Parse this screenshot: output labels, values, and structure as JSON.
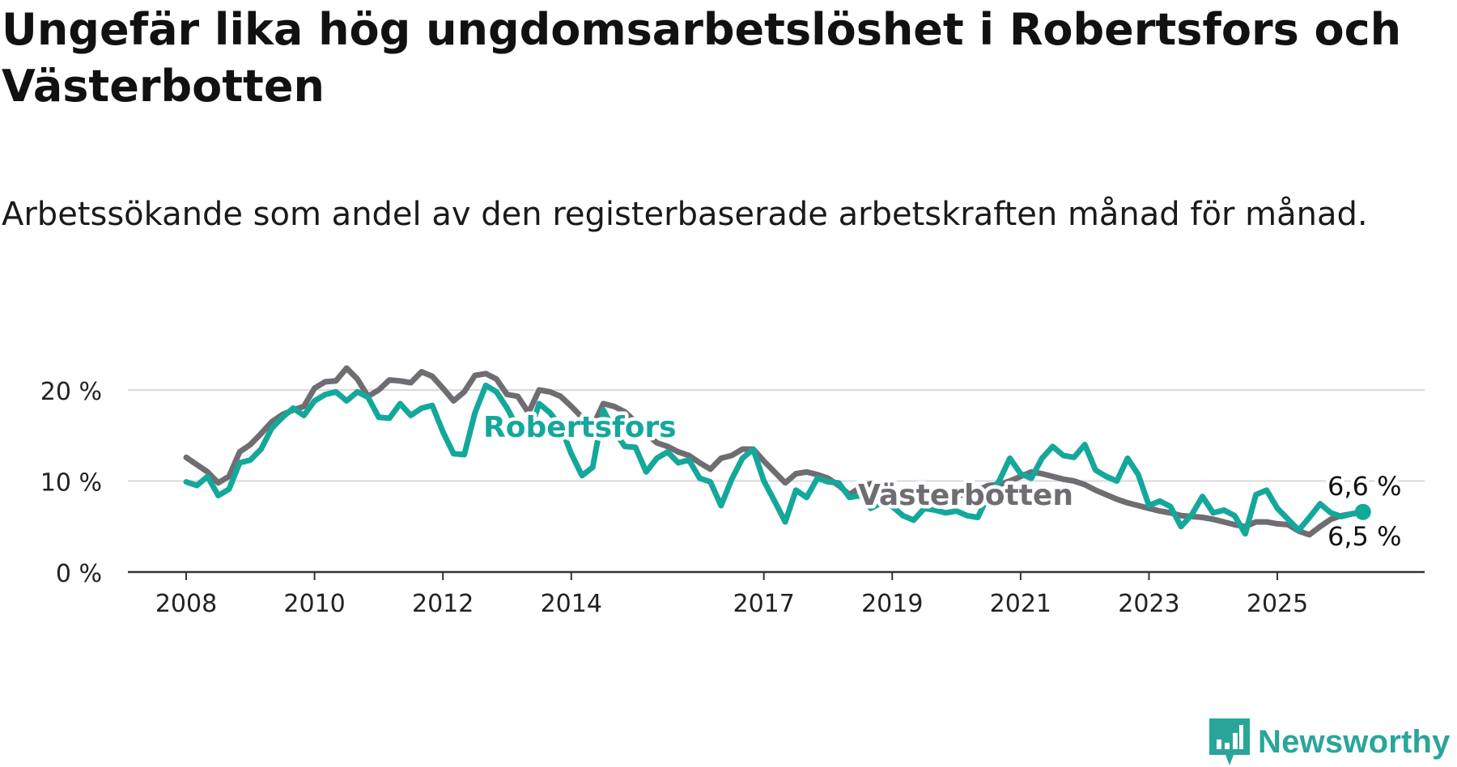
{
  "header": {
    "title": "Ungefär lika hög ungdomsarbetslöshet i Robertsfors och Västerbotten",
    "subtitle": "Arbetssökande som andel av den registerbaserade arbetskraften månad för månad."
  },
  "brand": {
    "name": "Newsworthy",
    "color": "#2aa59a",
    "logo_icon": "bar-chart-badge-icon"
  },
  "colors": {
    "robertsfors": "#14a89b",
    "vasterbotten": "#6f6d72",
    "grid": "#d9d9d9",
    "axis": "#333333"
  },
  "chart_data": {
    "type": "line",
    "title": "Ungefär lika hög ungdomsarbetslöshet i Robertsfors och Västerbotten",
    "subtitle": "Arbetssökande som andel av den registerbaserade arbetskraften månad för månad.",
    "xlabel": "",
    "ylabel": "",
    "x_ticks": [
      "2008",
      "2010",
      "2012",
      "2014",
      "2017",
      "2019",
      "2021",
      "2023",
      "2025"
    ],
    "y_ticks": [
      0,
      10,
      20
    ],
    "y_tick_labels": [
      "0 %",
      "10 %",
      "20 %"
    ],
    "ylim": [
      0,
      22.5
    ],
    "grid": "horizontal",
    "legend": "inline labels",
    "series": [
      {
        "name": "Robertsfors",
        "color": "#14a89b",
        "end_label": "6,6 %",
        "points": [
          [
            "2008-01",
            9.9
          ],
          [
            "2008-03",
            9.5
          ],
          [
            "2008-05",
            10.5
          ],
          [
            "2008-07",
            8.4
          ],
          [
            "2008-09",
            9.1
          ],
          [
            "2008-11",
            12.0
          ],
          [
            "2009-01",
            12.3
          ],
          [
            "2009-03",
            13.5
          ],
          [
            "2009-05",
            15.8
          ],
          [
            "2009-07",
            17.0
          ],
          [
            "2009-09",
            18.0
          ],
          [
            "2009-11",
            17.2
          ],
          [
            "2010-01",
            18.8
          ],
          [
            "2010-03",
            19.5
          ],
          [
            "2010-05",
            19.8
          ],
          [
            "2010-07",
            18.8
          ],
          [
            "2010-09",
            19.8
          ],
          [
            "2010-11",
            19.2
          ],
          [
            "2011-01",
            17.0
          ],
          [
            "2011-03",
            16.9
          ],
          [
            "2011-05",
            18.5
          ],
          [
            "2011-07",
            17.2
          ],
          [
            "2011-09",
            18.0
          ],
          [
            "2011-11",
            18.3
          ],
          [
            "2012-01",
            15.4
          ],
          [
            "2012-03",
            13.0
          ],
          [
            "2012-05",
            12.9
          ],
          [
            "2012-07",
            17.5
          ],
          [
            "2012-09",
            20.5
          ],
          [
            "2012-11",
            19.8
          ],
          [
            "2013-01",
            18.0
          ],
          [
            "2013-03",
            15.8
          ],
          [
            "2013-05",
            15.0
          ],
          [
            "2013-07",
            18.5
          ],
          [
            "2013-09",
            17.5
          ],
          [
            "2013-11",
            16.0
          ],
          [
            "2014-01",
            13.0
          ],
          [
            "2014-03",
            10.6
          ],
          [
            "2014-05",
            11.5
          ],
          [
            "2014-07",
            17.8
          ],
          [
            "2014-09",
            15.5
          ],
          [
            "2014-11",
            13.8
          ],
          [
            "2015-01",
            13.7
          ],
          [
            "2015-03",
            11.0
          ],
          [
            "2015-05",
            12.5
          ],
          [
            "2015-07",
            13.2
          ],
          [
            "2015-09",
            12.0
          ],
          [
            "2015-11",
            12.3
          ],
          [
            "2016-01",
            10.3
          ],
          [
            "2016-03",
            9.9
          ],
          [
            "2016-05",
            7.3
          ],
          [
            "2016-07",
            10.2
          ],
          [
            "2016-09",
            12.5
          ],
          [
            "2016-11",
            13.5
          ],
          [
            "2017-01",
            10.0
          ],
          [
            "2017-03",
            7.8
          ],
          [
            "2017-05",
            5.5
          ],
          [
            "2017-07",
            9.0
          ],
          [
            "2017-09",
            8.2
          ],
          [
            "2017-11",
            10.3
          ],
          [
            "2018-01",
            9.9
          ],
          [
            "2018-03",
            9.8
          ],
          [
            "2018-05",
            8.2
          ],
          [
            "2018-07",
            8.4
          ],
          [
            "2018-09",
            7.0
          ],
          [
            "2018-11",
            7.6
          ],
          [
            "2019-01",
            7.2
          ],
          [
            "2019-03",
            6.2
          ],
          [
            "2019-05",
            5.7
          ],
          [
            "2019-07",
            7.0
          ],
          [
            "2019-09",
            6.8
          ],
          [
            "2019-11",
            6.5
          ],
          [
            "2020-01",
            6.7
          ],
          [
            "2020-03",
            6.2
          ],
          [
            "2020-05",
            6.0
          ],
          [
            "2020-07",
            8.5
          ],
          [
            "2020-09",
            10.0
          ],
          [
            "2020-11",
            12.5
          ],
          [
            "2021-01",
            10.8
          ],
          [
            "2021-03",
            10.3
          ],
          [
            "2021-05",
            12.5
          ],
          [
            "2021-07",
            13.8
          ],
          [
            "2021-09",
            12.8
          ],
          [
            "2021-11",
            12.6
          ],
          [
            "2022-01",
            14.0
          ],
          [
            "2022-03",
            11.2
          ],
          [
            "2022-05",
            10.5
          ],
          [
            "2022-07",
            10.0
          ],
          [
            "2022-09",
            12.5
          ],
          [
            "2022-11",
            10.7
          ],
          [
            "2023-01",
            7.3
          ],
          [
            "2023-03",
            7.8
          ],
          [
            "2023-05",
            7.2
          ],
          [
            "2023-07",
            5.0
          ],
          [
            "2023-09",
            6.3
          ],
          [
            "2023-11",
            8.3
          ],
          [
            "2024-01",
            6.5
          ],
          [
            "2024-03",
            6.8
          ],
          [
            "2024-05",
            6.2
          ],
          [
            "2024-07",
            4.2
          ],
          [
            "2024-09",
            8.5
          ],
          [
            "2024-11",
            9.0
          ],
          [
            "2025-01",
            7.0
          ],
          [
            "2025-03",
            5.8
          ],
          [
            "2025-05",
            4.6
          ],
          [
            "2025-07",
            6.0
          ],
          [
            "2025-09",
            7.5
          ],
          [
            "2025-11",
            6.5
          ],
          [
            "2026-01",
            6.1
          ],
          [
            "2026-03",
            6.4
          ],
          [
            "2026-05",
            6.6
          ]
        ]
      },
      {
        "name": "Västerbotten",
        "color": "#6f6d72",
        "end_label": "6,5 %",
        "points": [
          [
            "2008-01",
            12.6
          ],
          [
            "2008-03",
            11.8
          ],
          [
            "2008-05",
            11.0
          ],
          [
            "2008-07",
            9.8
          ],
          [
            "2008-09",
            10.5
          ],
          [
            "2008-11",
            13.2
          ],
          [
            "2009-01",
            14.0
          ],
          [
            "2009-03",
            15.2
          ],
          [
            "2009-05",
            16.5
          ],
          [
            "2009-07",
            17.3
          ],
          [
            "2009-09",
            17.8
          ],
          [
            "2009-11",
            18.2
          ],
          [
            "2010-01",
            20.2
          ],
          [
            "2010-03",
            20.9
          ],
          [
            "2010-05",
            21.0
          ],
          [
            "2010-07",
            22.4
          ],
          [
            "2010-09",
            21.2
          ],
          [
            "2010-11",
            19.3
          ],
          [
            "2011-01",
            20.0
          ],
          [
            "2011-03",
            21.1
          ],
          [
            "2011-05",
            21.0
          ],
          [
            "2011-07",
            20.8
          ],
          [
            "2011-09",
            22.0
          ],
          [
            "2011-11",
            21.5
          ],
          [
            "2012-01",
            20.2
          ],
          [
            "2012-03",
            18.8
          ],
          [
            "2012-05",
            19.8
          ],
          [
            "2012-07",
            21.6
          ],
          [
            "2012-09",
            21.8
          ],
          [
            "2012-11",
            21.2
          ],
          [
            "2013-01",
            19.5
          ],
          [
            "2013-03",
            19.3
          ],
          [
            "2013-05",
            17.5
          ],
          [
            "2013-07",
            20.0
          ],
          [
            "2013-09",
            19.8
          ],
          [
            "2013-11",
            19.3
          ],
          [
            "2014-01",
            18.2
          ],
          [
            "2014-03",
            17.0
          ],
          [
            "2014-05",
            16.0
          ],
          [
            "2014-07",
            18.5
          ],
          [
            "2014-09",
            18.2
          ],
          [
            "2014-11",
            17.6
          ],
          [
            "2015-01",
            16.5
          ],
          [
            "2015-03",
            15.2
          ],
          [
            "2015-05",
            14.2
          ],
          [
            "2015-07",
            13.8
          ],
          [
            "2015-09",
            13.2
          ],
          [
            "2015-11",
            12.8
          ],
          [
            "2016-01",
            12.0
          ],
          [
            "2016-03",
            11.3
          ],
          [
            "2016-05",
            12.5
          ],
          [
            "2016-07",
            12.8
          ],
          [
            "2016-09",
            13.5
          ],
          [
            "2016-11",
            13.5
          ],
          [
            "2017-01",
            12.2
          ],
          [
            "2017-03",
            11.0
          ],
          [
            "2017-05",
            9.8
          ],
          [
            "2017-07",
            10.8
          ],
          [
            "2017-09",
            11.0
          ],
          [
            "2017-11",
            10.7
          ],
          [
            "2018-01",
            10.3
          ],
          [
            "2018-03",
            9.5
          ],
          [
            "2018-05",
            8.5
          ],
          [
            "2018-07",
            9.3
          ],
          [
            "2018-09",
            9.7
          ],
          [
            "2018-11",
            9.5
          ],
          [
            "2019-01",
            9.0
          ],
          [
            "2019-03",
            8.7
          ],
          [
            "2019-05",
            8.5
          ],
          [
            "2019-07",
            8.8
          ],
          [
            "2019-09",
            8.7
          ],
          [
            "2019-11",
            8.6
          ],
          [
            "2020-01",
            8.4
          ],
          [
            "2020-03",
            8.5
          ],
          [
            "2020-05",
            9.0
          ],
          [
            "2020-07",
            9.5
          ],
          [
            "2020-09",
            9.6
          ],
          [
            "2020-11",
            10.0
          ],
          [
            "2021-01",
            10.5
          ],
          [
            "2021-03",
            11.0
          ],
          [
            "2021-05",
            10.8
          ],
          [
            "2021-07",
            10.5
          ],
          [
            "2021-09",
            10.2
          ],
          [
            "2021-11",
            10.0
          ],
          [
            "2022-01",
            9.6
          ],
          [
            "2022-03",
            9.0
          ],
          [
            "2022-05",
            8.5
          ],
          [
            "2022-07",
            8.0
          ],
          [
            "2022-09",
            7.6
          ],
          [
            "2022-11",
            7.3
          ],
          [
            "2023-01",
            7.0
          ],
          [
            "2023-03",
            6.7
          ],
          [
            "2023-05",
            6.5
          ],
          [
            "2023-07",
            6.2
          ],
          [
            "2023-09",
            6.1
          ],
          [
            "2023-11",
            6.0
          ],
          [
            "2024-01",
            5.8
          ],
          [
            "2024-03",
            5.5
          ],
          [
            "2024-05",
            5.2
          ],
          [
            "2024-07",
            5.0
          ],
          [
            "2024-09",
            5.5
          ],
          [
            "2024-11",
            5.5
          ],
          [
            "2025-01",
            5.3
          ],
          [
            "2025-03",
            5.2
          ],
          [
            "2025-05",
            4.5
          ],
          [
            "2025-07",
            4.1
          ],
          [
            "2025-09",
            5.0
          ],
          [
            "2025-11",
            5.8
          ],
          [
            "2026-01",
            6.2
          ],
          [
            "2026-03",
            6.4
          ],
          [
            "2026-05",
            6.5
          ]
        ]
      }
    ],
    "annotations": [
      "Robertsfors",
      "Västerbotten",
      "6,6 %",
      "6,5 %"
    ]
  }
}
